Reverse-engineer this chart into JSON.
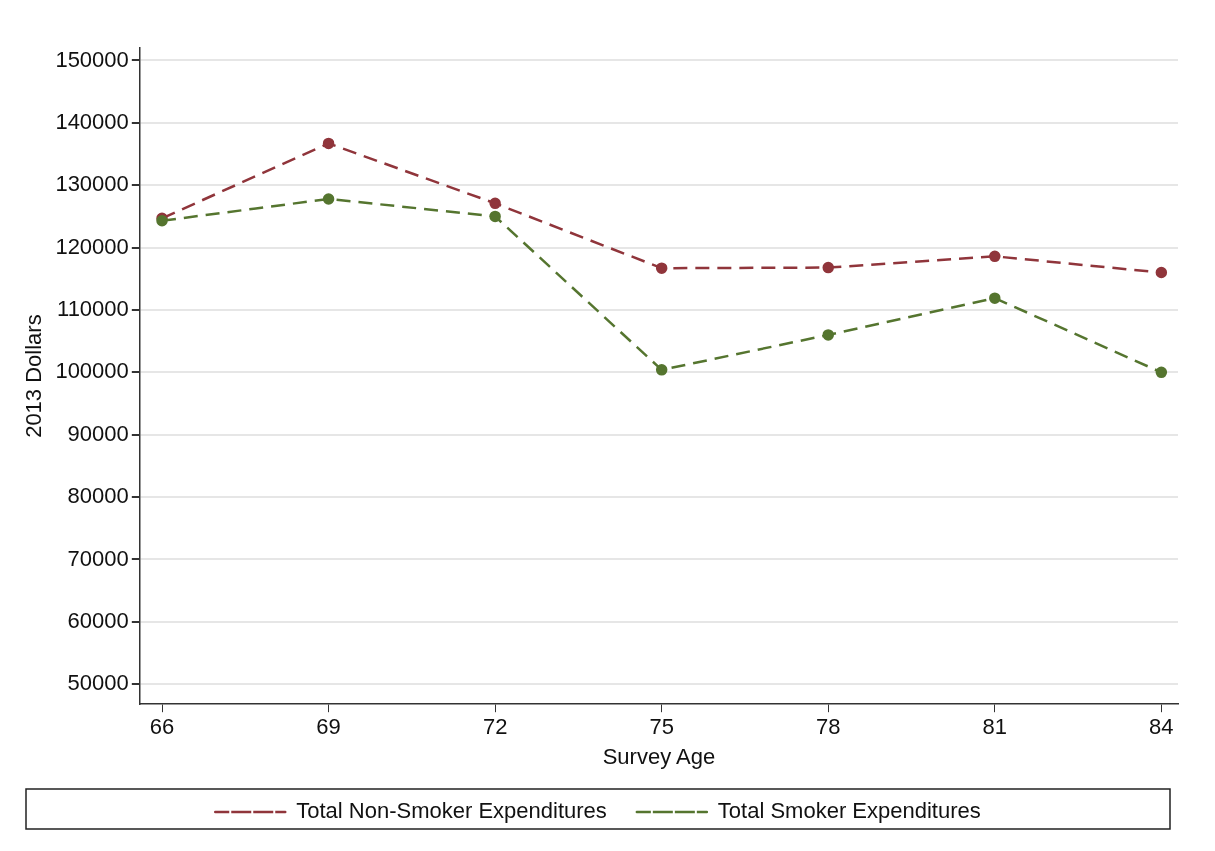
{
  "chart_data": {
    "type": "line",
    "xlabel": "Survey Age",
    "ylabel": "2013 Dollars",
    "x": [
      66,
      69,
      72,
      75,
      78,
      81,
      84
    ],
    "series": [
      {
        "name": "Total Non-Smoker Expenditures",
        "color": "#90353b",
        "values": [
          124700,
          136700,
          127100,
          116700,
          116800,
          118600,
          116000
        ]
      },
      {
        "name": "Total Smoker Expenditures",
        "color": "#55752f",
        "values": [
          124300,
          127800,
          125000,
          100400,
          106000,
          111900,
          100000
        ]
      }
    ],
    "xlim": [
      65.6,
      84.3
    ],
    "xticks": [
      66,
      69,
      72,
      75,
      78,
      81,
      84
    ],
    "ylim": [
      46800,
      152000
    ],
    "yticks": [
      50000,
      60000,
      70000,
      80000,
      90000,
      100000,
      110000,
      120000,
      130000,
      140000,
      150000
    ],
    "grid": "y",
    "legend": "bottom",
    "marker": "circle",
    "line_style": "dashed"
  }
}
